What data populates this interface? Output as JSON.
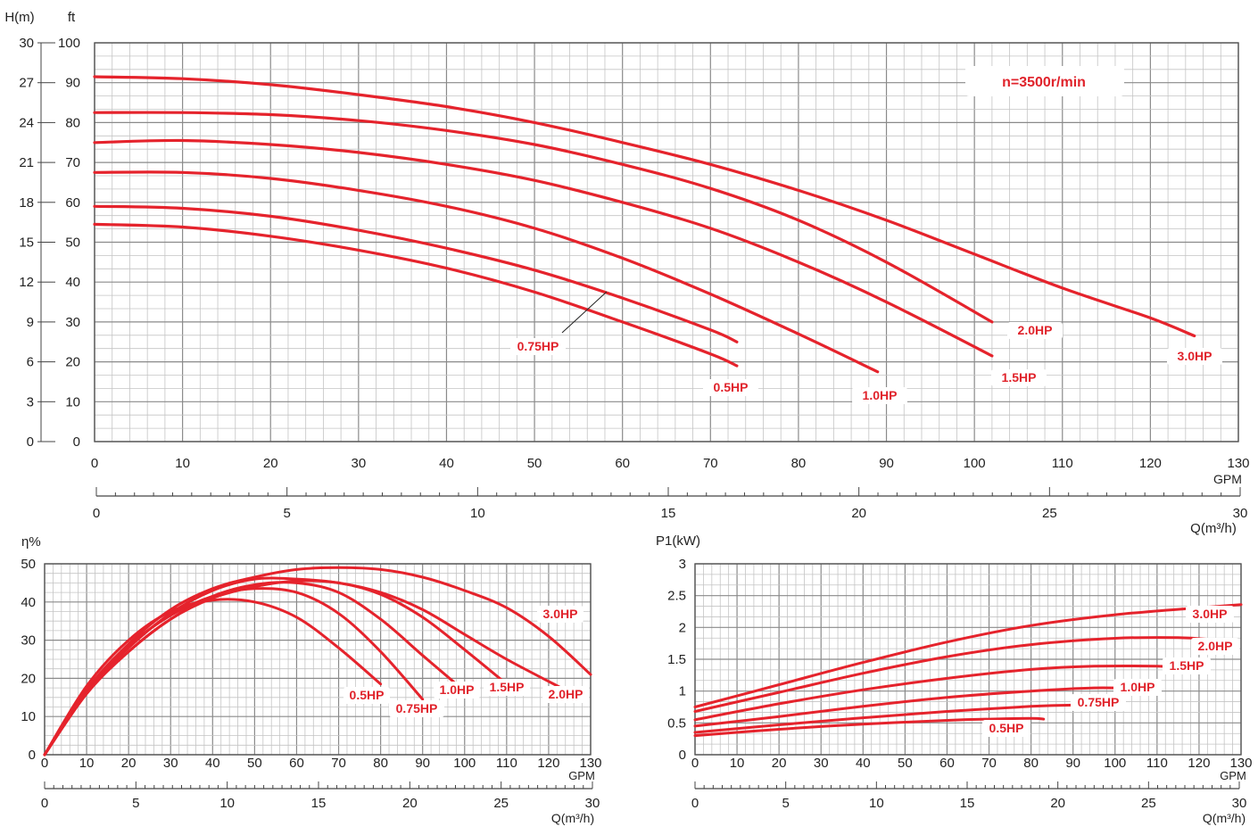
{
  "chart_data": [
    {
      "type": "line",
      "name": "head-curve",
      "units": {
        "left": "H(m)",
        "right": "ft"
      },
      "flow_units": {
        "primary": "GPM",
        "secondary": "Q(m³/h)"
      },
      "speed_label": "n=3500r/min",
      "x_gpm_ticks": [
        0,
        10,
        20,
        30,
        40,
        50,
        60,
        70,
        80,
        90,
        100,
        110,
        120,
        130
      ],
      "x_m3h_ticks": [
        0,
        5,
        10,
        15,
        20,
        25,
        30
      ],
      "y_m_ticks": [
        0,
        3,
        6,
        9,
        12,
        15,
        18,
        21,
        24,
        27,
        30
      ],
      "y_ft_ticks": [
        0,
        10,
        20,
        30,
        40,
        50,
        60,
        70,
        80,
        90,
        100
      ],
      "xlim": [
        0,
        130
      ],
      "ylim_ft": [
        0,
        100
      ],
      "series": [
        {
          "name": "0.5HP",
          "label_pos": "below",
          "points": [
            [
              0,
              54.5
            ],
            [
              10,
              53.8
            ],
            [
              20,
              51.5
            ],
            [
              30,
              48
            ],
            [
              40,
              43.5
            ],
            [
              50,
              37.5
            ],
            [
              60,
              30
            ],
            [
              70,
              22
            ],
            [
              73,
              19
            ]
          ]
        },
        {
          "name": "0.75HP",
          "label_pos": "callout",
          "points": [
            [
              0,
              59
            ],
            [
              10,
              58.5
            ],
            [
              20,
              56.5
            ],
            [
              30,
              53
            ],
            [
              40,
              48.5
            ],
            [
              50,
              43
            ],
            [
              60,
              36
            ],
            [
              70,
              28
            ],
            [
              73,
              25
            ]
          ]
        },
        {
          "name": "1.0HP",
          "label_pos": "below",
          "points": [
            [
              0,
              67.5
            ],
            [
              10,
              67.5
            ],
            [
              20,
              66
            ],
            [
              30,
              63
            ],
            [
              40,
              59
            ],
            [
              50,
              53.5
            ],
            [
              60,
              46
            ],
            [
              70,
              37
            ],
            [
              80,
              27
            ],
            [
              89,
              17.5
            ]
          ]
        },
        {
          "name": "1.5HP",
          "label_pos": "below",
          "points": [
            [
              0,
              75
            ],
            [
              10,
              75.5
            ],
            [
              20,
              74.5
            ],
            [
              30,
              72.5
            ],
            [
              40,
              69.5
            ],
            [
              50,
              65.5
            ],
            [
              60,
              60
            ],
            [
              70,
              53.5
            ],
            [
              80,
              45
            ],
            [
              90,
              35
            ],
            [
              102,
              21.5
            ]
          ]
        },
        {
          "name": "2.0HP",
          "label_pos": "right",
          "points": [
            [
              0,
              82.5
            ],
            [
              10,
              82.5
            ],
            [
              20,
              82
            ],
            [
              30,
              80.5
            ],
            [
              40,
              78
            ],
            [
              50,
              74.5
            ],
            [
              60,
              69.5
            ],
            [
              70,
              63.5
            ],
            [
              80,
              55.5
            ],
            [
              90,
              45
            ],
            [
              102,
              30
            ]
          ]
        },
        {
          "name": "3.0HP",
          "label_pos": "right",
          "points": [
            [
              0,
              91.5
            ],
            [
              10,
              91
            ],
            [
              20,
              89.5
            ],
            [
              30,
              87
            ],
            [
              40,
              84
            ],
            [
              50,
              80
            ],
            [
              60,
              75
            ],
            [
              70,
              69.5
            ],
            [
              80,
              63
            ],
            [
              90,
              55.5
            ],
            [
              100,
              47
            ],
            [
              110,
              38.5
            ],
            [
              120,
              31
            ],
            [
              125,
              26.5
            ]
          ]
        }
      ]
    },
    {
      "type": "line",
      "name": "efficiency-curve",
      "ylabel": "η%",
      "flow_units": {
        "primary": "GPM",
        "secondary": "Q(m³/h)"
      },
      "x_gpm_ticks": [
        0,
        10,
        20,
        30,
        40,
        50,
        60,
        70,
        80,
        90,
        100,
        110,
        120,
        130
      ],
      "x_m3h_ticks": [
        0,
        5,
        10,
        15,
        20,
        25,
        30
      ],
      "y_ticks": [
        0,
        10,
        20,
        30,
        40,
        50
      ],
      "ylim": [
        0,
        50
      ],
      "series": [
        {
          "name": "0.5HP",
          "points": [
            [
              0,
              0
            ],
            [
              10,
              18
            ],
            [
              20,
              30
            ],
            [
              30,
              37.5
            ],
            [
              40,
              40.5
            ],
            [
              50,
              40
            ],
            [
              60,
              36
            ],
            [
              70,
              28
            ],
            [
              80,
              18.5
            ]
          ]
        },
        {
          "name": "0.75HP",
          "points": [
            [
              0,
              0
            ],
            [
              10,
              17
            ],
            [
              20,
              28.5
            ],
            [
              30,
              36.5
            ],
            [
              40,
              41.5
            ],
            [
              50,
              43.5
            ],
            [
              60,
              42.5
            ],
            [
              70,
              37
            ],
            [
              80,
              27
            ],
            [
              90,
              14.5
            ]
          ]
        },
        {
          "name": "1.0HP",
          "points": [
            [
              0,
              0
            ],
            [
              10,
              16
            ],
            [
              20,
              27
            ],
            [
              30,
              35.5
            ],
            [
              40,
              41.5
            ],
            [
              50,
              44.5
            ],
            [
              60,
              45
            ],
            [
              70,
              42.5
            ],
            [
              80,
              35.5
            ],
            [
              90,
              26
            ],
            [
              98,
              18.5
            ]
          ]
        },
        {
          "name": "1.5HP",
          "points": [
            [
              0,
              0
            ],
            [
              10,
              16
            ],
            [
              20,
              27
            ],
            [
              30,
              35.5
            ],
            [
              40,
              41
            ],
            [
              50,
              44
            ],
            [
              60,
              45.5
            ],
            [
              70,
              45
            ],
            [
              80,
              42
            ],
            [
              90,
              36
            ],
            [
              100,
              27.5
            ],
            [
              110,
              18.5
            ]
          ]
        },
        {
          "name": "2.0HP",
          "points": [
            [
              0,
              0
            ],
            [
              10,
              16.5
            ],
            [
              20,
              28
            ],
            [
              30,
              37
            ],
            [
              40,
              43
            ],
            [
              50,
              46
            ],
            [
              60,
              46
            ],
            [
              70,
              45
            ],
            [
              80,
              42.5
            ],
            [
              90,
              38
            ],
            [
              100,
              31.5
            ],
            [
              110,
              25
            ],
            [
              123,
              17.5
            ]
          ]
        },
        {
          "name": "3.0HP",
          "points": [
            [
              0,
              0
            ],
            [
              10,
              17
            ],
            [
              20,
              29
            ],
            [
              30,
              38
            ],
            [
              40,
              43.5
            ],
            [
              50,
              46.5
            ],
            [
              60,
              48.5
            ],
            [
              70,
              49
            ],
            [
              80,
              48.5
            ],
            [
              90,
              46.5
            ],
            [
              100,
              43
            ],
            [
              110,
              38.5
            ],
            [
              120,
              31
            ],
            [
              130,
              21
            ]
          ]
        }
      ]
    },
    {
      "type": "line",
      "name": "power-curve",
      "ylabel": "P1(kW)",
      "flow_units": {
        "primary": "GPM",
        "secondary": "Q(m³/h)"
      },
      "x_gpm_ticks": [
        0,
        10,
        20,
        30,
        40,
        50,
        60,
        70,
        80,
        90,
        100,
        110,
        120,
        130
      ],
      "x_m3h_ticks": [
        0,
        5,
        10,
        15,
        20,
        25,
        30
      ],
      "y_ticks": [
        "0",
        "0.5",
        "1",
        "1.5",
        "2",
        "2.5",
        "3"
      ],
      "ylim": [
        0,
        3
      ],
      "series": [
        {
          "name": "0.5HP",
          "points": [
            [
              0,
              0.3
            ],
            [
              20,
              0.4
            ],
            [
              40,
              0.48
            ],
            [
              60,
              0.54
            ],
            [
              70,
              0.56
            ],
            [
              80,
              0.57
            ],
            [
              83,
              0.56
            ]
          ]
        },
        {
          "name": "0.75HP",
          "points": [
            [
              0,
              0.35
            ],
            [
              20,
              0.47
            ],
            [
              40,
              0.58
            ],
            [
              60,
              0.68
            ],
            [
              80,
              0.76
            ],
            [
              90,
              0.78
            ],
            [
              94,
              0.77
            ]
          ]
        },
        {
          "name": "1.0HP",
          "points": [
            [
              0,
              0.45
            ],
            [
              20,
              0.6
            ],
            [
              40,
              0.76
            ],
            [
              60,
              0.9
            ],
            [
              80,
              1.0
            ],
            [
              95,
              1.05
            ],
            [
              105,
              1.04
            ]
          ]
        },
        {
          "name": "1.5HP",
          "points": [
            [
              0,
              0.55
            ],
            [
              20,
              0.8
            ],
            [
              40,
              1.02
            ],
            [
              60,
              1.2
            ],
            [
              80,
              1.34
            ],
            [
              95,
              1.39
            ],
            [
              110,
              1.39
            ],
            [
              118,
              1.36
            ]
          ]
        },
        {
          "name": "2.0HP",
          "points": [
            [
              0,
              0.68
            ],
            [
              20,
              0.98
            ],
            [
              40,
              1.28
            ],
            [
              60,
              1.54
            ],
            [
              80,
              1.73
            ],
            [
              100,
              1.83
            ],
            [
              115,
              1.84
            ],
            [
              123,
              1.81
            ]
          ]
        },
        {
          "name": "3.0HP",
          "points": [
            [
              0,
              0.75
            ],
            [
              20,
              1.1
            ],
            [
              40,
              1.45
            ],
            [
              60,
              1.77
            ],
            [
              80,
              2.03
            ],
            [
              100,
              2.2
            ],
            [
              120,
              2.31
            ],
            [
              130,
              2.36
            ]
          ]
        }
      ]
    }
  ]
}
